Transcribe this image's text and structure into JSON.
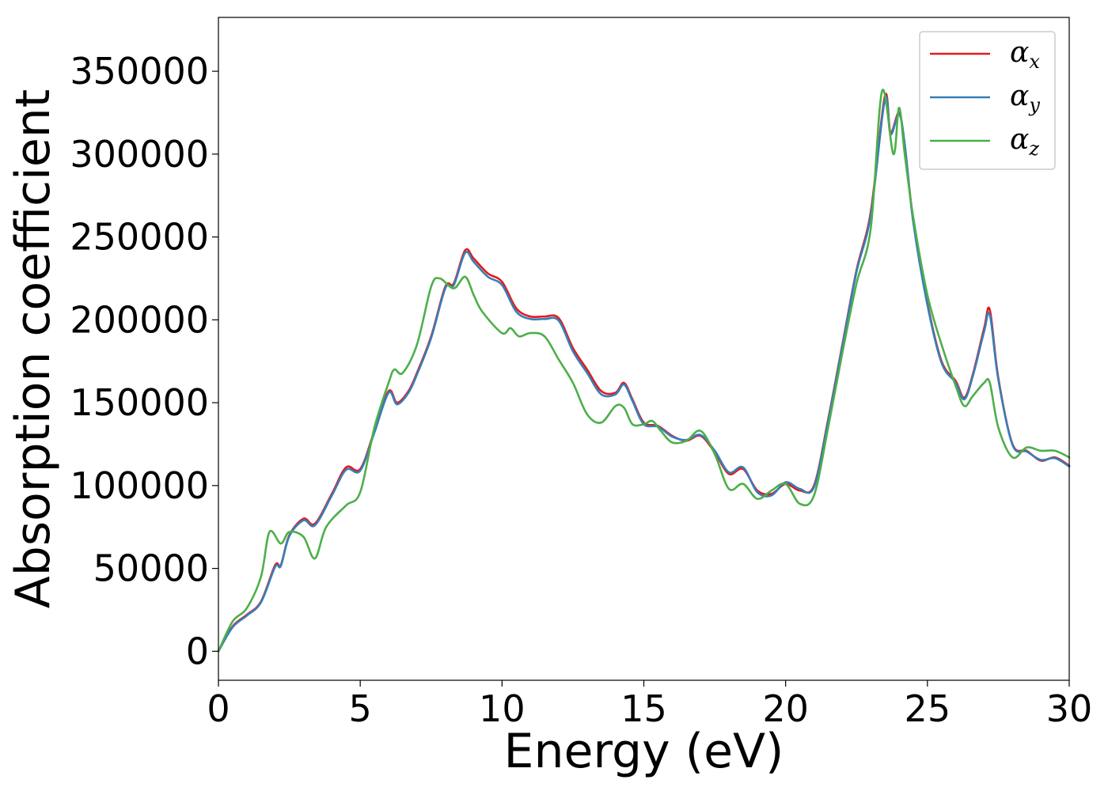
{
  "chart_data": {
    "type": "line",
    "title": "",
    "xlabel": "Energy (eV)",
    "ylabel": "Absorption coefficient",
    "xlim": [
      0,
      30
    ],
    "ylim": [
      -17500,
      382500
    ],
    "xticks": [
      0,
      5,
      10,
      15,
      20,
      25,
      30
    ],
    "yticks": [
      0,
      50000,
      100000,
      150000,
      200000,
      250000,
      300000,
      350000
    ],
    "grid": false,
    "legend_position": "top-right",
    "series": [
      {
        "name": "αx",
        "legend_symbol": "α",
        "legend_subscript": "x",
        "color": "#e41a1c",
        "points": [
          [
            0,
            0
          ],
          [
            0.5,
            15000
          ],
          [
            1,
            22000
          ],
          [
            1.5,
            30000
          ],
          [
            2,
            52000
          ],
          [
            2.2,
            52000
          ],
          [
            2.5,
            70000
          ],
          [
            3,
            80000
          ],
          [
            3.4,
            77000
          ],
          [
            4,
            95000
          ],
          [
            4.5,
            111000
          ],
          [
            5,
            110000
          ],
          [
            5.5,
            133000
          ],
          [
            6,
            157000
          ],
          [
            6.3,
            150000
          ],
          [
            6.7,
            157000
          ],
          [
            7,
            168000
          ],
          [
            7.5,
            190000
          ],
          [
            8,
            220000
          ],
          [
            8.3,
            222000
          ],
          [
            8.7,
            242000
          ],
          [
            9,
            237000
          ],
          [
            9.5,
            228000
          ],
          [
            10,
            223000
          ],
          [
            10.5,
            207000
          ],
          [
            11,
            202000
          ],
          [
            11.5,
            202000
          ],
          [
            12,
            201000
          ],
          [
            12.5,
            183000
          ],
          [
            13,
            170000
          ],
          [
            13.5,
            157000
          ],
          [
            14,
            156000
          ],
          [
            14.3,
            162000
          ],
          [
            14.6,
            152000
          ],
          [
            15,
            138000
          ],
          [
            15.5,
            136000
          ],
          [
            16,
            130000
          ],
          [
            16.5,
            127000
          ],
          [
            17,
            130000
          ],
          [
            17.5,
            120000
          ],
          [
            18,
            107000
          ],
          [
            18.5,
            110000
          ],
          [
            19,
            97000
          ],
          [
            19.5,
            95000
          ],
          [
            20,
            101000
          ],
          [
            20.5,
            97000
          ],
          [
            21,
            100000
          ],
          [
            21.5,
            140000
          ],
          [
            22,
            185000
          ],
          [
            22.5,
            230000
          ],
          [
            23,
            265000
          ],
          [
            23.5,
            335000
          ],
          [
            23.7,
            313000
          ],
          [
            24,
            325000
          ],
          [
            24.2,
            305000
          ],
          [
            24.5,
            260000
          ],
          [
            25,
            210000
          ],
          [
            25.5,
            175000
          ],
          [
            26,
            163000
          ],
          [
            26.3,
            153000
          ],
          [
            26.6,
            167000
          ],
          [
            27,
            195000
          ],
          [
            27.2,
            206000
          ],
          [
            27.5,
            165000
          ],
          [
            28,
            125000
          ],
          [
            28.5,
            121000
          ],
          [
            29,
            115000
          ],
          [
            29.5,
            117000
          ],
          [
            30,
            112000
          ]
        ]
      },
      {
        "name": "αy",
        "legend_symbol": "α",
        "legend_subscript": "y",
        "color": "#377eb8",
        "points": [
          [
            0,
            0
          ],
          [
            0.5,
            14500
          ],
          [
            1,
            21500
          ],
          [
            1.5,
            29500
          ],
          [
            2,
            51000
          ],
          [
            2.2,
            51500
          ],
          [
            2.5,
            69500
          ],
          [
            3,
            79000
          ],
          [
            3.4,
            76000
          ],
          [
            4,
            94000
          ],
          [
            4.5,
            109500
          ],
          [
            5,
            109000
          ],
          [
            5.5,
            132000
          ],
          [
            6,
            156000
          ],
          [
            6.3,
            149000
          ],
          [
            6.7,
            156000
          ],
          [
            7,
            167000
          ],
          [
            7.5,
            189000
          ],
          [
            8,
            219000
          ],
          [
            8.3,
            221000
          ],
          [
            8.7,
            240500
          ],
          [
            9,
            235000
          ],
          [
            9.5,
            226000
          ],
          [
            10,
            221000
          ],
          [
            10.5,
            205000
          ],
          [
            11,
            200500
          ],
          [
            11.5,
            200500
          ],
          [
            12,
            199500
          ],
          [
            12.5,
            181000
          ],
          [
            13,
            168000
          ],
          [
            13.5,
            155000
          ],
          [
            14,
            155000
          ],
          [
            14.3,
            161000
          ],
          [
            14.6,
            151000
          ],
          [
            15,
            137000
          ],
          [
            15.5,
            135500
          ],
          [
            16,
            129500
          ],
          [
            16.5,
            127500
          ],
          [
            17,
            130500
          ],
          [
            17.5,
            121000
          ],
          [
            18,
            108000
          ],
          [
            18.5,
            111000
          ],
          [
            19,
            96000
          ],
          [
            19.5,
            94000
          ],
          [
            20,
            102000
          ],
          [
            20.5,
            98000
          ],
          [
            21,
            99000
          ],
          [
            21.5,
            139000
          ],
          [
            22,
            184000
          ],
          [
            22.5,
            229000
          ],
          [
            23,
            263000
          ],
          [
            23.5,
            333000
          ],
          [
            23.7,
            312000
          ],
          [
            24,
            324000
          ],
          [
            24.2,
            306000
          ],
          [
            24.5,
            259000
          ],
          [
            25,
            209000
          ],
          [
            25.5,
            174000
          ],
          [
            26,
            162000
          ],
          [
            26.3,
            152000
          ],
          [
            26.6,
            166000
          ],
          [
            27,
            193000
          ],
          [
            27.2,
            203000
          ],
          [
            27.5,
            164000
          ],
          [
            28,
            124500
          ],
          [
            28.5,
            120500
          ],
          [
            29,
            115500
          ],
          [
            29.5,
            116500
          ],
          [
            30,
            111500
          ]
        ]
      },
      {
        "name": "αz",
        "legend_symbol": "α",
        "legend_subscript": "z",
        "color": "#4daf4a",
        "points": [
          [
            0,
            0
          ],
          [
            0.5,
            18000
          ],
          [
            1,
            26000
          ],
          [
            1.5,
            45000
          ],
          [
            1.8,
            72000
          ],
          [
            2.2,
            65000
          ],
          [
            2.5,
            72000
          ],
          [
            3,
            69000
          ],
          [
            3.4,
            56000
          ],
          [
            3.8,
            75000
          ],
          [
            4.5,
            88000
          ],
          [
            5,
            96000
          ],
          [
            5.5,
            135000
          ],
          [
            6,
            162000
          ],
          [
            6.2,
            170000
          ],
          [
            6.5,
            168000
          ],
          [
            7,
            185000
          ],
          [
            7.5,
            220000
          ],
          [
            7.8,
            225000
          ],
          [
            8.3,
            219000
          ],
          [
            8.7,
            226000
          ],
          [
            9,
            215000
          ],
          [
            9.3,
            205000
          ],
          [
            10,
            192000
          ],
          [
            10.3,
            195000
          ],
          [
            10.6,
            190000
          ],
          [
            11,
            192000
          ],
          [
            11.5,
            190000
          ],
          [
            12,
            176000
          ],
          [
            12.5,
            162000
          ],
          [
            13,
            143000
          ],
          [
            13.5,
            138000
          ],
          [
            14,
            148000
          ],
          [
            14.3,
            147000
          ],
          [
            14.6,
            137000
          ],
          [
            15,
            137000
          ],
          [
            15.3,
            139000
          ],
          [
            15.6,
            133000
          ],
          [
            16,
            126000
          ],
          [
            16.5,
            127000
          ],
          [
            17,
            133000
          ],
          [
            17.5,
            119000
          ],
          [
            18,
            98000
          ],
          [
            18.5,
            101000
          ],
          [
            19,
            92000
          ],
          [
            19.5,
            97000
          ],
          [
            20,
            101000
          ],
          [
            20.5,
            89000
          ],
          [
            21,
            94000
          ],
          [
            21.5,
            135000
          ],
          [
            22,
            180000
          ],
          [
            22.5,
            222000
          ],
          [
            23,
            255000
          ],
          [
            23.4,
            338000
          ],
          [
            23.8,
            300000
          ],
          [
            24,
            328000
          ],
          [
            24.2,
            300000
          ],
          [
            24.5,
            262000
          ],
          [
            25,
            215000
          ],
          [
            25.5,
            185000
          ],
          [
            26,
            160000
          ],
          [
            26.3,
            148000
          ],
          [
            26.6,
            154000
          ],
          [
            27,
            162000
          ],
          [
            27.2,
            162000
          ],
          [
            27.5,
            135000
          ],
          [
            28,
            117000
          ],
          [
            28.5,
            123000
          ],
          [
            29,
            121000
          ],
          [
            29.5,
            121000
          ],
          [
            30,
            117000
          ]
        ]
      }
    ]
  }
}
